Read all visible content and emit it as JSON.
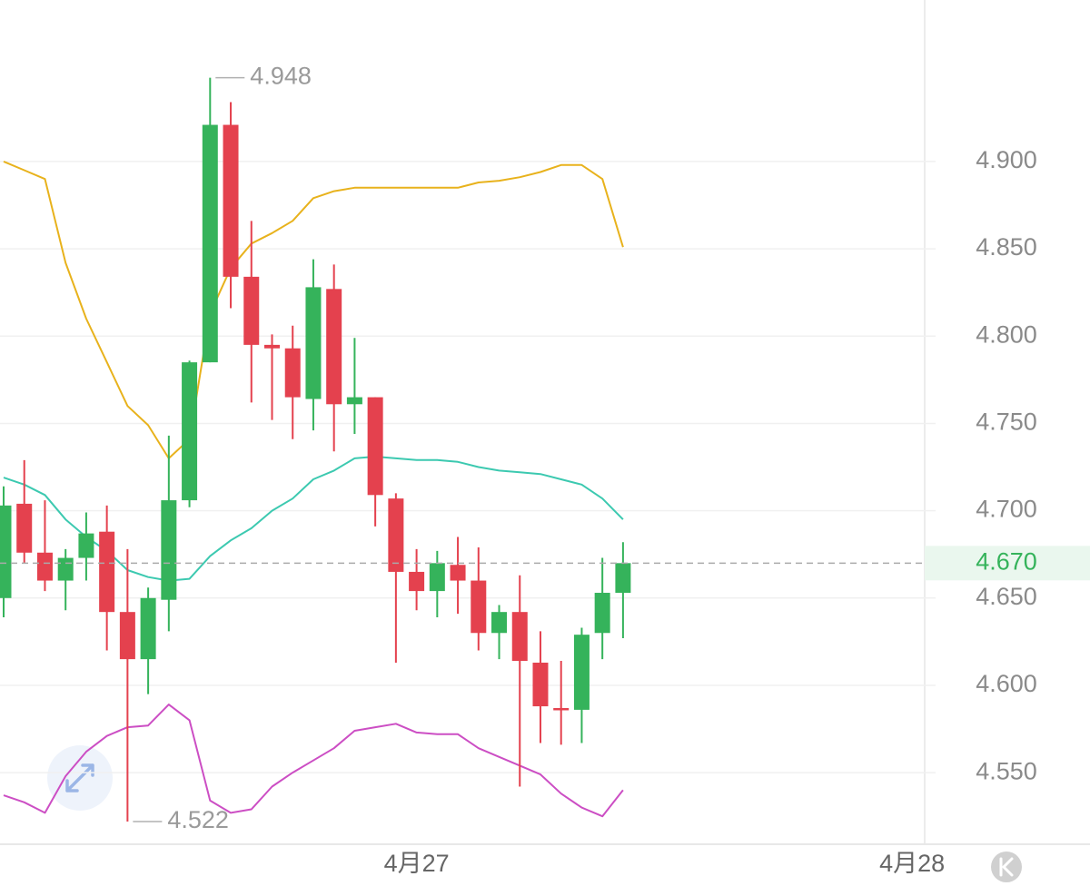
{
  "chart_data": {
    "type": "candlestick",
    "categories": [
      null,
      null,
      null,
      null,
      null,
      null,
      null,
      null,
      null,
      null,
      null,
      null,
      null,
      null,
      null,
      null,
      null,
      null,
      null,
      null,
      "4月27",
      null,
      null,
      null,
      null,
      null,
      null,
      null,
      null,
      null,
      null,
      null,
      null,
      null,
      null,
      null,
      null,
      null,
      null,
      null,
      null,
      null,
      null,
      null,
      "4月28"
    ],
    "open": [
      4.65,
      4.704,
      4.676,
      4.66,
      4.673,
      4.688,
      4.642,
      4.615,
      4.649,
      4.706,
      4.785,
      4.921,
      4.834,
      4.795,
      4.793,
      4.764,
      4.827,
      4.761,
      4.765,
      4.707,
      4.665,
      4.654,
      4.669,
      4.66,
      4.63,
      4.642,
      4.613,
      4.587,
      4.586,
      4.63,
      4.653,
      null,
      null,
      null,
      null,
      null,
      null,
      null,
      null,
      null,
      null,
      null,
      null,
      null,
      null
    ],
    "high": [
      4.714,
      4.729,
      4.706,
      4.678,
      4.699,
      4.703,
      4.678,
      4.656,
      4.743,
      4.786,
      4.948,
      4.934,
      4.866,
      4.801,
      4.806,
      4.844,
      4.841,
      4.799,
      4.765,
      4.71,
      4.678,
      4.677,
      4.685,
      4.679,
      4.646,
      4.663,
      4.631,
      4.614,
      4.633,
      4.673,
      4.682,
      null,
      null,
      null,
      null,
      null,
      null,
      null,
      null,
      null,
      null,
      null,
      null,
      null,
      null
    ],
    "low": [
      4.639,
      4.67,
      4.654,
      4.643,
      4.66,
      4.62,
      4.522,
      4.595,
      4.631,
      4.702,
      4.785,
      4.816,
      4.762,
      4.752,
      4.741,
      4.746,
      4.734,
      4.744,
      4.691,
      4.613,
      4.643,
      4.639,
      4.641,
      4.62,
      4.615,
      4.542,
      4.567,
      4.566,
      4.567,
      4.615,
      4.627,
      null,
      null,
      null,
      null,
      null,
      null,
      null,
      null,
      null,
      null,
      null,
      null,
      null,
      null
    ],
    "close": [
      4.703,
      4.676,
      4.66,
      4.673,
      4.687,
      4.642,
      4.615,
      4.65,
      4.706,
      4.785,
      4.921,
      4.834,
      4.795,
      4.793,
      4.765,
      4.828,
      4.761,
      4.765,
      4.709,
      4.665,
      4.654,
      4.67,
      4.66,
      4.63,
      4.642,
      4.614,
      4.588,
      4.586,
      4.629,
      4.653,
      4.67,
      null,
      null,
      null,
      null,
      null,
      null,
      null,
      null,
      null,
      null,
      null,
      null,
      null,
      null
    ],
    "up_color": "#35b35b",
    "down_color": "#e4414e",
    "bands": [
      {
        "color": "#e8b21c",
        "values": [
          4.9,
          4.895,
          4.89,
          4.842,
          4.81,
          4.785,
          4.76,
          4.749,
          4.73,
          4.741,
          4.813,
          4.839,
          4.853,
          4.859,
          4.866,
          4.879,
          4.883,
          4.885,
          4.885,
          4.885,
          4.885,
          4.885,
          4.885,
          4.888,
          4.889,
          4.891,
          4.894,
          4.898,
          4.898,
          4.89,
          4.851,
          null,
          null,
          null,
          null,
          null,
          null,
          null,
          null,
          null,
          null,
          null,
          null,
          null,
          null
        ]
      },
      {
        "color": "#3cc9b0",
        "values": [
          4.719,
          4.715,
          4.709,
          4.695,
          4.685,
          4.677,
          4.666,
          4.662,
          4.66,
          4.661,
          4.674,
          4.683,
          4.69,
          4.7,
          4.707,
          4.718,
          4.723,
          4.73,
          4.731,
          4.73,
          4.729,
          4.729,
          4.728,
          4.725,
          4.723,
          4.722,
          4.721,
          4.718,
          4.715,
          4.707,
          4.695,
          null,
          null,
          null,
          null,
          null,
          null,
          null,
          null,
          null,
          null,
          null,
          null,
          null,
          null
        ]
      },
      {
        "color": "#cc4ec4",
        "values": [
          4.537,
          4.533,
          4.527,
          4.548,
          4.562,
          4.571,
          4.576,
          4.577,
          4.589,
          4.58,
          4.534,
          4.527,
          4.529,
          4.542,
          4.55,
          4.557,
          4.564,
          4.574,
          4.576,
          4.578,
          4.573,
          4.572,
          4.572,
          4.564,
          4.559,
          4.554,
          4.549,
          4.538,
          4.53,
          4.525,
          4.54,
          null,
          null,
          null,
          null,
          null,
          null,
          null,
          null,
          null,
          null,
          null,
          null,
          null,
          null
        ]
      }
    ],
    "ylim": [
      4.509,
      4.9925
    ],
    "yticks": [
      {
        "value": 4.55,
        "label": "4.550"
      },
      {
        "value": 4.6,
        "label": "4.600"
      },
      {
        "value": 4.65,
        "label": "4.650"
      },
      {
        "value": 4.7,
        "label": "4.700"
      },
      {
        "value": 4.75,
        "label": "4.750"
      },
      {
        "value": 4.8,
        "label": "4.800"
      },
      {
        "value": 4.85,
        "label": "4.850"
      },
      {
        "value": 4.9,
        "label": "4.900"
      }
    ],
    "last_price": {
      "value": 4.67,
      "label": "4.670"
    },
    "max_marker": 4.948,
    "min_marker": 4.522,
    "grid": true
  }
}
